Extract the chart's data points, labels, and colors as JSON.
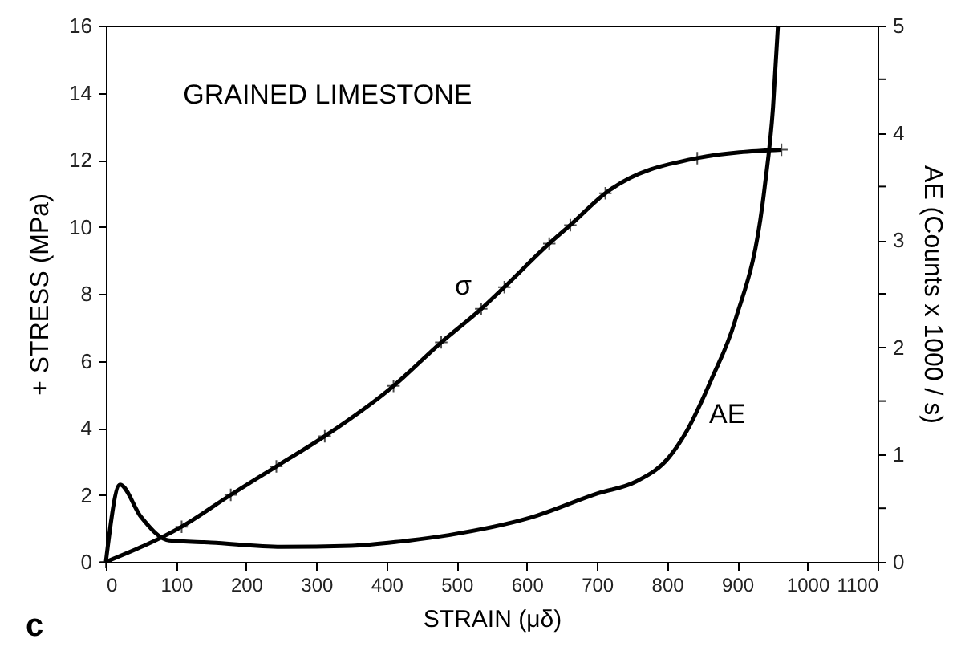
{
  "chart_data": {
    "type": "line",
    "xlabel": "STRAIN (μδ)",
    "ylabel": "+ STRESS (MPa)",
    "y2label": "AE (Counts x 1000 / s)",
    "xlim": [
      0,
      1100
    ],
    "xticks": [
      0,
      100,
      200,
      300,
      400,
      500,
      600,
      700,
      800,
      900,
      1000,
      1100
    ],
    "ylim": [
      0,
      16
    ],
    "yticks": [
      0,
      2,
      4,
      6,
      8,
      10,
      12,
      14,
      16
    ],
    "y2lim": [
      0,
      5
    ],
    "y2ticks": [
      0,
      {
        "value": 0.5,
        "label": null
      },
      1,
      {
        "value": 1.5,
        "label": null
      },
      2,
      {
        "value": 2.5,
        "label": null
      },
      3,
      {
        "value": 3.5,
        "label": null
      },
      4,
      {
        "value": 4.5,
        "label": null
      },
      5
    ],
    "grid": false,
    "series": [
      {
        "name": "σ",
        "color": "#000000",
        "marker": "cross",
        "x": [
          0,
          108,
          178,
          243,
          312,
          410,
          478,
          535,
          568,
          632,
          662,
          712,
          843,
          963
        ],
        "values": [
          0,
          1.05,
          2.0,
          2.85,
          3.75,
          5.25,
          6.55,
          7.55,
          8.2,
          9.5,
          10.05,
          11.0,
          12.05,
          12.3
        ]
      },
      {
        "name": "AE",
        "color": "#000000",
        "marker": "none",
        "axis": "y2",
        "x": [
          0,
          20,
          50,
          90,
          150,
          250,
          350,
          420,
          489,
          604,
          702,
          756,
          802,
          828,
          863,
          897,
          939,
          951,
          958
        ],
        "values": [
          0,
          0.72,
          0.42,
          0.2,
          0.18,
          0.14,
          0.15,
          0.19,
          0.25,
          0.41,
          0.64,
          0.75,
          0.97,
          1.22,
          1.7,
          2.25,
          3.49,
          4.24,
          5.0
        ]
      }
    ],
    "annotations": [
      "GRAINED LIMESTONE",
      "c"
    ]
  }
}
